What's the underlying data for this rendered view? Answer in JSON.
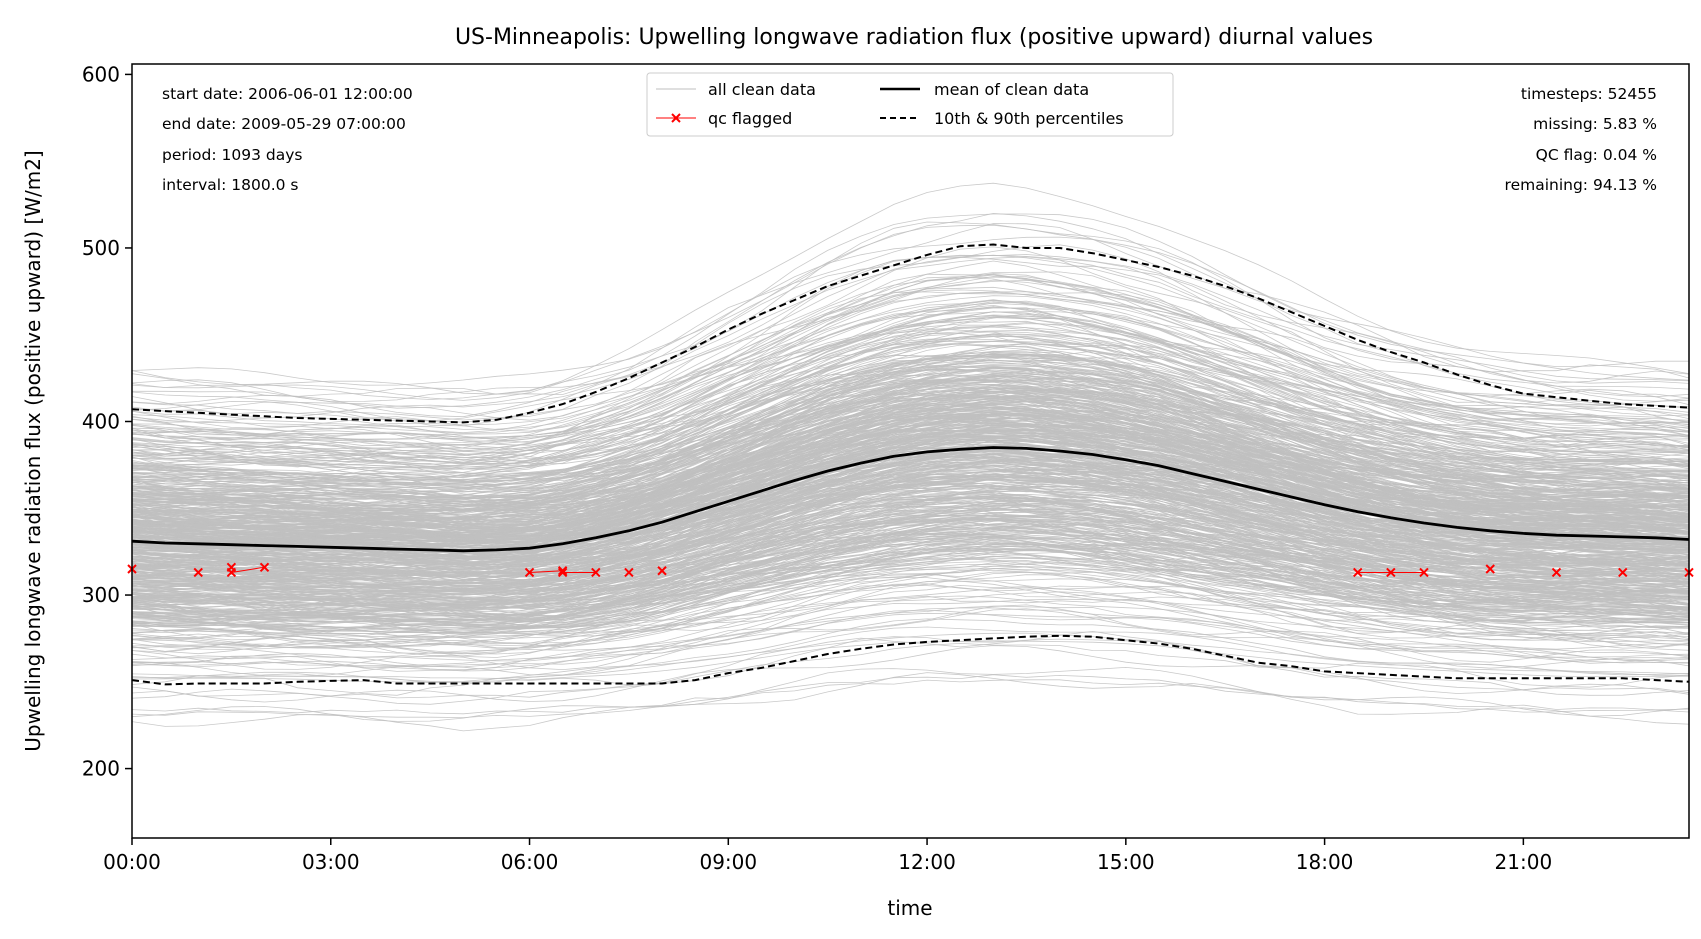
{
  "chart_data": {
    "type": "line",
    "title": "US-Minneapolis: Upwelling longwave radiation flux (positive upward) diurnal values",
    "xlabel": "time",
    "ylabel": "Upwelling longwave radiation flux (positive upward) [W/m2]",
    "xlim": [
      0,
      23.5
    ],
    "ylim": [
      160,
      606
    ],
    "xtick_values": [
      0,
      3,
      6,
      9,
      12,
      15,
      18,
      21
    ],
    "xtick_labels": [
      "00:00",
      "03:00",
      "06:00",
      "09:00",
      "12:00",
      "15:00",
      "18:00",
      "21:00"
    ],
    "ytick_values": [
      200,
      300,
      400,
      500,
      600
    ],
    "ytick_labels": [
      "200",
      "300",
      "400",
      "500",
      "600"
    ],
    "grid": false,
    "info_left": [
      "start date: 2006-06-01 12:00:00",
      "end date: 2009-05-29 07:00:00",
      "period: 1093 days",
      "interval: 1800.0 s"
    ],
    "info_right": [
      "timesteps: 52455",
      "missing: 5.83 %",
      "QC flag: 0.04 %",
      "remaining: 94.13 %"
    ],
    "legend": {
      "position": "top-center",
      "entries": [
        {
          "label": "all clean data",
          "style": "thin-grey"
        },
        {
          "label": "mean of clean data",
          "style": "solid-black"
        },
        {
          "label": "qc flagged",
          "style": "red-x"
        },
        {
          "label": "10th & 90th percentiles",
          "style": "dashed-black"
        }
      ]
    },
    "colors": {
      "clean": "#bfbfbf",
      "mean": "#000000",
      "percentile": "#000000",
      "flagged": "#ff0000"
    },
    "x": [
      0,
      0.5,
      1,
      1.5,
      2,
      2.5,
      3,
      3.5,
      4,
      4.5,
      5,
      5.5,
      6,
      6.5,
      7,
      7.5,
      8,
      8.5,
      9,
      9.5,
      10,
      10.5,
      11,
      11.5,
      12,
      12.5,
      13,
      13.5,
      14,
      14.5,
      15,
      15.5,
      16,
      16.5,
      17,
      17.5,
      18,
      18.5,
      19,
      19.5,
      20,
      20.5,
      21,
      21.5,
      22,
      22.5,
      23,
      23.5
    ],
    "series": [
      {
        "name": "mean of clean data",
        "values": [
          331,
          330,
          329.5,
          329,
          328.5,
          328,
          327.5,
          327,
          326.5,
          326,
          325.5,
          326,
          327,
          329.5,
          333,
          337,
          342,
          348,
          354,
          360,
          366,
          371.5,
          376,
          380,
          382.5,
          384,
          385,
          384.5,
          383,
          381,
          378,
          374.5,
          370,
          365.5,
          361,
          356.5,
          352,
          348,
          344.5,
          341.5,
          339,
          337,
          335.5,
          334.5,
          334,
          333.5,
          333,
          332
        ]
      },
      {
        "name": "10th & 90th percentiles",
        "values": [
          407,
          406,
          405,
          404,
          403,
          402,
          401.5,
          401,
          400.5,
          400,
          399.5,
          401,
          405,
          410,
          417,
          425,
          434,
          443,
          453,
          462,
          470,
          478,
          484,
          490,
          496,
          501,
          502,
          500,
          500,
          497,
          493,
          489,
          484,
          478,
          471,
          463,
          455,
          447,
          440,
          434,
          427,
          421,
          416,
          414,
          412,
          410,
          409,
          408
        ]
      },
      {
        "name": "10th & 90th percentiles",
        "values": [
          251,
          248.5,
          249,
          249,
          249,
          250,
          250.5,
          251,
          249,
          249,
          249,
          249,
          249,
          249,
          249,
          249,
          249,
          251,
          255,
          258,
          262,
          266,
          269,
          271.5,
          273,
          274,
          275,
          276,
          276.5,
          276,
          274,
          272,
          269,
          265,
          261,
          259,
          256,
          255,
          254,
          253,
          252,
          252,
          252,
          252,
          252,
          252,
          251,
          250
        ]
      }
    ],
    "qc_flagged": [
      {
        "x": 0,
        "y": 315
      },
      {
        "x": 1,
        "y": 313
      },
      {
        "x": 1.5,
        "y": 316
      },
      {
        "x": 1.5,
        "y": 313
      },
      {
        "x": 2,
        "y": 316
      },
      {
        "x": 6,
        "y": 313
      },
      {
        "x": 6.5,
        "y": 314
      },
      {
        "x": 6.5,
        "y": 313
      },
      {
        "x": 7,
        "y": 313
      },
      {
        "x": 7.5,
        "y": 313
      },
      {
        "x": 8,
        "y": 314
      },
      {
        "x": 18.5,
        "y": 313
      },
      {
        "x": 19,
        "y": 313
      },
      {
        "x": 19.5,
        "y": 313
      },
      {
        "x": 20.5,
        "y": 315
      },
      {
        "x": 21.5,
        "y": 313
      },
      {
        "x": 22.5,
        "y": 313
      },
      {
        "x": 23.5,
        "y": 313
      }
    ]
  }
}
